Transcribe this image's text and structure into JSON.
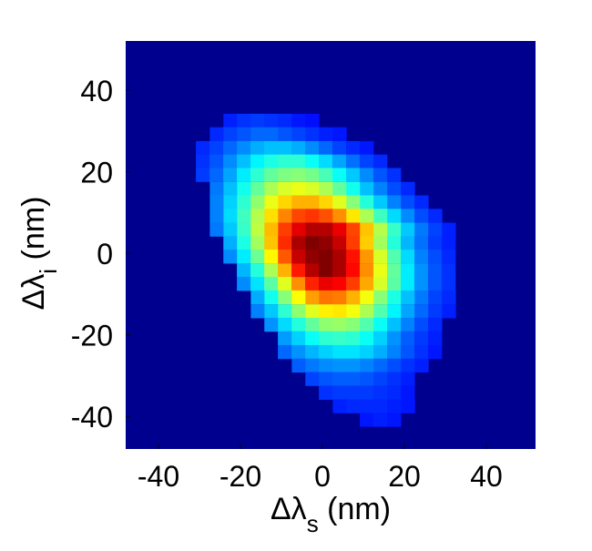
{
  "chart_data": {
    "type": "heatmap",
    "title": "",
    "xlabel": {
      "base": "Δλ",
      "sub": "s",
      "unit": " (nm)"
    },
    "ylabel": {
      "base": "Δλ",
      "sub": "i",
      "unit": " (nm)"
    },
    "xlim": [
      -48,
      52
    ],
    "ylim": [
      -48,
      52
    ],
    "xticks": [
      -40,
      -20,
      0,
      20,
      40
    ],
    "yticks": [
      -40,
      -20,
      0,
      20,
      40
    ],
    "xtick_labels": [
      "-40",
      "-20",
      "0",
      "20",
      "40"
    ],
    "ytick_labels": [
      "-40",
      "-20",
      "0",
      "20",
      "40"
    ],
    "colormap": "jet",
    "background_color": "#00008f",
    "bin_size": 3.33,
    "orientation": "anti-diagonal",
    "normalized_max": 1.0,
    "rows": [
      {
        "y": 32.5,
        "x_start": -22.5,
        "values": [
          0.04,
          0.06,
          0.07,
          0.06,
          0.05,
          0.03,
          0.02
        ]
      },
      {
        "y": 29.2,
        "x_start": -25.8,
        "values": [
          0.05,
          0.08,
          0.1,
          0.12,
          0.12,
          0.1,
          0.08,
          0.06,
          0.04,
          0.03
        ]
      },
      {
        "y": 25.8,
        "x_start": -29.2,
        "values": [
          0.05,
          0.08,
          0.12,
          0.16,
          0.2,
          0.22,
          0.22,
          0.2,
          0.16,
          0.12,
          0.08,
          0.05,
          0.03
        ]
      },
      {
        "y": 22.5,
        "x_start": -29.2,
        "values": [
          0.06,
          0.1,
          0.16,
          0.22,
          0.28,
          0.32,
          0.34,
          0.34,
          0.3,
          0.25,
          0.19,
          0.13,
          0.08,
          0.05
        ]
      },
      {
        "y": 19.2,
        "x_start": -29.2,
        "values": [
          0.07,
          0.12,
          0.19,
          0.27,
          0.34,
          0.4,
          0.43,
          0.44,
          0.42,
          0.37,
          0.3,
          0.23,
          0.16,
          0.1,
          0.06
        ]
      },
      {
        "y": 15.8,
        "x_start": -25.8,
        "values": [
          0.14,
          0.22,
          0.31,
          0.4,
          0.48,
          0.53,
          0.55,
          0.53,
          0.48,
          0.4,
          0.31,
          0.22,
          0.15,
          0.09,
          0.05
        ]
      },
      {
        "y": 12.5,
        "x_start": -25.8,
        "values": [
          0.15,
          0.24,
          0.34,
          0.45,
          0.55,
          0.62,
          0.66,
          0.66,
          0.62,
          0.54,
          0.44,
          0.33,
          0.23,
          0.15,
          0.09,
          0.05
        ]
      },
      {
        "y": 9.2,
        "x_start": -25.8,
        "values": [
          0.15,
          0.25,
          0.36,
          0.49,
          0.61,
          0.71,
          0.78,
          0.8,
          0.77,
          0.7,
          0.6,
          0.48,
          0.36,
          0.25,
          0.16,
          0.09,
          0.05
        ]
      },
      {
        "y": 5.8,
        "x_start": -25.8,
        "values": [
          0.14,
          0.23,
          0.35,
          0.5,
          0.65,
          0.79,
          0.89,
          0.94,
          0.94,
          0.88,
          0.78,
          0.64,
          0.49,
          0.35,
          0.23,
          0.14,
          0.08,
          0.04
        ]
      },
      {
        "y": 2.5,
        "x_start": -22.5,
        "values": [
          0.2,
          0.32,
          0.47,
          0.64,
          0.81,
          0.95,
          1.0,
          0.98,
          0.92,
          0.79,
          0.63,
          0.47,
          0.33,
          0.21,
          0.13,
          0.07,
          0.04
        ]
      },
      {
        "y": -0.8,
        "x_start": -22.5,
        "values": [
          0.16,
          0.27,
          0.41,
          0.58,
          0.76,
          0.92,
          0.98,
          1.0,
          0.95,
          0.84,
          0.69,
          0.53,
          0.38,
          0.25,
          0.15,
          0.09,
          0.05
        ]
      },
      {
        "y": -4.2,
        "x_start": -19.2,
        "values": [
          0.21,
          0.33,
          0.48,
          0.66,
          0.83,
          0.94,
          1.0,
          0.95,
          0.85,
          0.7,
          0.55,
          0.4,
          0.27,
          0.17,
          0.1,
          0.06
        ]
      },
      {
        "y": -7.5,
        "x_start": -19.2,
        "values": [
          0.16,
          0.26,
          0.39,
          0.54,
          0.7,
          0.82,
          0.88,
          0.86,
          0.79,
          0.67,
          0.53,
          0.39,
          0.27,
          0.17,
          0.1,
          0.06
        ]
      },
      {
        "y": -10.8,
        "x_start": -15.8,
        "values": [
          0.2,
          0.31,
          0.44,
          0.57,
          0.68,
          0.73,
          0.72,
          0.66,
          0.56,
          0.44,
          0.32,
          0.22,
          0.14,
          0.08,
          0.05
        ]
      },
      {
        "y": -14.2,
        "x_start": -15.8,
        "values": [
          0.15,
          0.23,
          0.34,
          0.45,
          0.54,
          0.59,
          0.6,
          0.56,
          0.48,
          0.38,
          0.28,
          0.19,
          0.12,
          0.07,
          0.04
        ]
      },
      {
        "y": -17.5,
        "x_start": -12.5,
        "values": [
          0.17,
          0.25,
          0.33,
          0.4,
          0.45,
          0.46,
          0.44,
          0.38,
          0.3,
          0.22,
          0.15,
          0.09,
          0.05
        ]
      },
      {
        "y": -20.8,
        "x_start": -9.2,
        "values": [
          0.18,
          0.24,
          0.3,
          0.34,
          0.35,
          0.34,
          0.3,
          0.24,
          0.17,
          0.11,
          0.07,
          0.04
        ]
      },
      {
        "y": -24.2,
        "x_start": -9.2,
        "values": [
          0.12,
          0.17,
          0.21,
          0.24,
          0.26,
          0.26,
          0.24,
          0.2,
          0.15,
          0.1,
          0.06,
          0.03
        ]
      },
      {
        "y": -27.5,
        "x_start": -5.8,
        "values": [
          0.11,
          0.14,
          0.16,
          0.17,
          0.17,
          0.15,
          0.12,
          0.09,
          0.06,
          0.04
        ]
      },
      {
        "y": -30.8,
        "x_start": -2.5,
        "values": [
          0.08,
          0.1,
          0.11,
          0.11,
          0.1,
          0.08,
          0.06,
          0.04
        ]
      },
      {
        "y": -34.2,
        "x_start": 0.8,
        "values": [
          0.06,
          0.07,
          0.07,
          0.07,
          0.06,
          0.05,
          0.03
        ]
      },
      {
        "y": -37.5,
        "x_start": 4.2,
        "values": [
          0.04,
          0.05,
          0.05,
          0.05,
          0.04,
          0.03
        ]
      },
      {
        "y": -40.8,
        "x_start": 10.8,
        "values": [
          0.03,
          0.04,
          0.03
        ]
      }
    ]
  }
}
